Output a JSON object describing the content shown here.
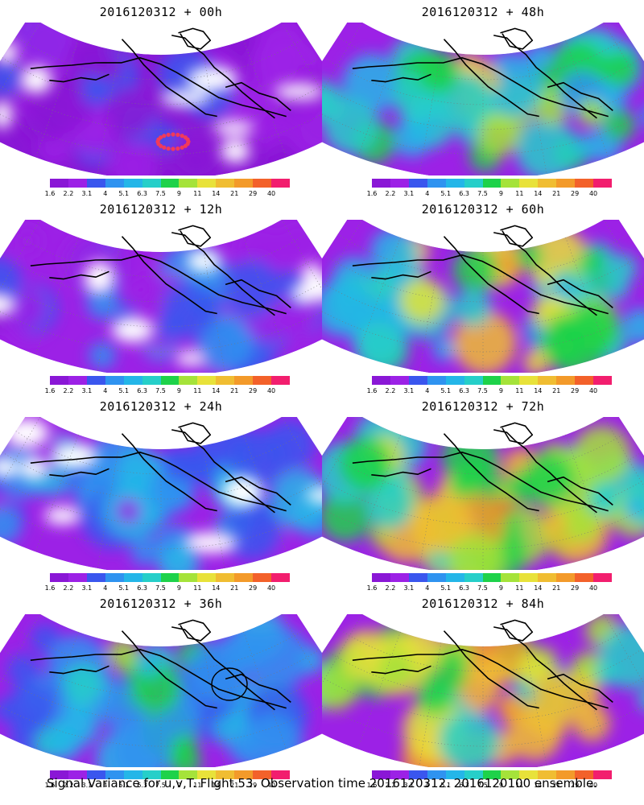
{
  "panels": [
    {
      "title": "2016120312 + 00h",
      "level": 0.1,
      "ring": true,
      "circle": false
    },
    {
      "title": "2016120312 + 48h",
      "level": 0.62,
      "ring": false,
      "circle": false
    },
    {
      "title": "2016120312 + 12h",
      "level": 0.18,
      "ring": false,
      "circle": false
    },
    {
      "title": "2016120312 + 60h",
      "level": 0.68,
      "ring": false,
      "circle": false
    },
    {
      "title": "2016120312 + 24h",
      "level": 0.3,
      "ring": false,
      "circle": false
    },
    {
      "title": "2016120312 + 72h",
      "level": 0.76,
      "ring": false,
      "circle": false
    },
    {
      "title": "2016120312 + 36h",
      "level": 0.42,
      "ring": false,
      "circle": true
    },
    {
      "title": "2016120312 + 84h",
      "level": 0.84,
      "ring": false,
      "circle": false
    }
  ],
  "colorbar": {
    "labels": [
      "1.6",
      "2.2",
      "3.1",
      "4",
      "5.1",
      "6.3",
      "7.5",
      "9",
      "11",
      "14",
      "21",
      "29",
      "40"
    ],
    "colors": [
      "#8a17d6",
      "#9c21e6",
      "#3a56ee",
      "#2f93f0",
      "#24b6e8",
      "#26cfc9",
      "#1ed24a",
      "#a5e33a",
      "#e8e23a",
      "#f0bd32",
      "#f39a2a",
      "#f3612a",
      "#f21e6e"
    ]
  },
  "caption": "Signal Variance for u,v,T. Flight 53. Observation time 2016120312. 2016120100 ensemble."
}
